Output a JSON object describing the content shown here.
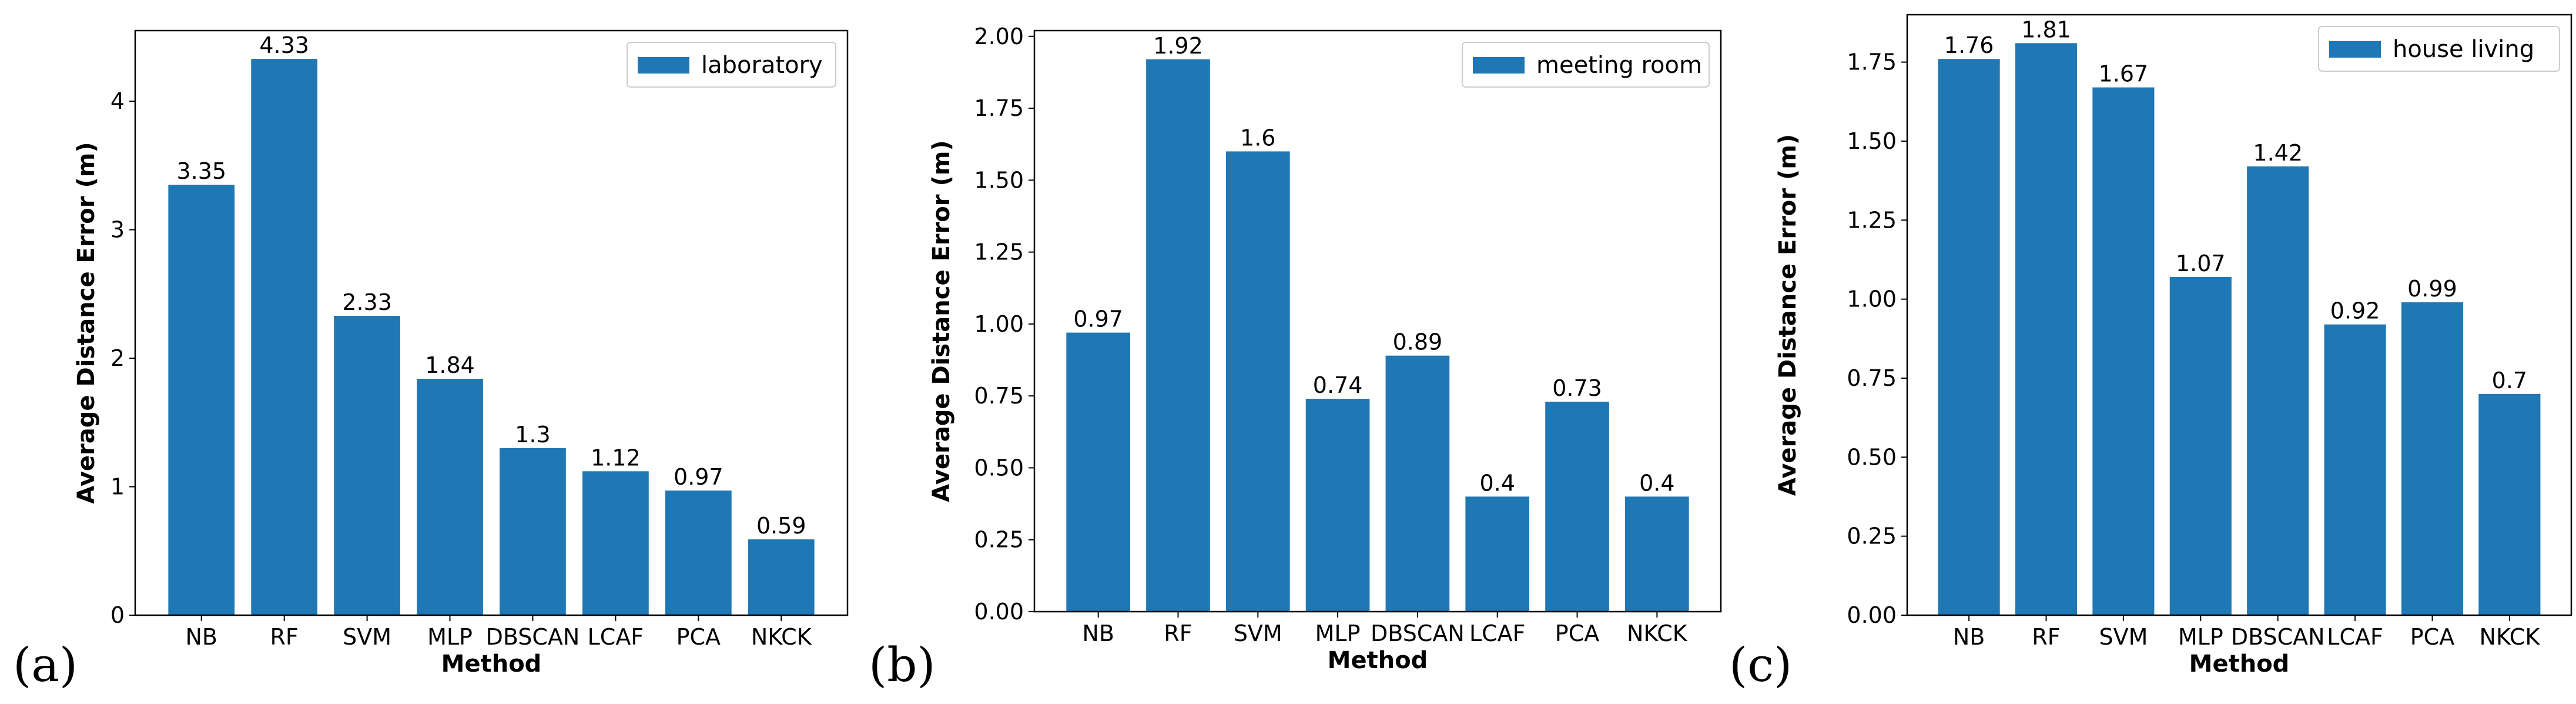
{
  "chart_data": [
    {
      "type": "bar",
      "panel_label": "(a)",
      "categories": [
        "NB",
        "RF",
        "SVM",
        "MLP",
        "DBSCAN",
        "LCAF",
        "PCA",
        "NKCK"
      ],
      "series": [
        {
          "name": "laboratory",
          "values": [
            3.35,
            4.33,
            2.33,
            1.84,
            1.3,
            1.12,
            0.97,
            0.59
          ]
        }
      ],
      "value_labels": [
        "3.35",
        "4.33",
        "2.33",
        "1.84",
        "1.3",
        "1.12",
        "0.97",
        "0.59"
      ],
      "xlabel": "Method",
      "ylabel": "Average Distance Error (m)",
      "ylim": [
        0,
        4.55
      ],
      "yticks": [
        0,
        1,
        2,
        3,
        4
      ],
      "ytick_labels": [
        "0",
        "1",
        "2",
        "3",
        "4"
      ],
      "legend_position": "top-right",
      "grid": false,
      "color": "#1f77b4"
    },
    {
      "type": "bar",
      "panel_label": "(b)",
      "categories": [
        "NB",
        "RF",
        "SVM",
        "MLP",
        "DBSCAN",
        "LCAF",
        "PCA",
        "NKCK"
      ],
      "series": [
        {
          "name": "meeting room",
          "values": [
            0.97,
            1.92,
            1.6,
            0.74,
            0.89,
            0.4,
            0.73,
            0.4
          ]
        }
      ],
      "value_labels": [
        "0.97",
        "1.92",
        "1.6",
        "0.74",
        "0.89",
        "0.4",
        "0.73",
        "0.4"
      ],
      "xlabel": "Method",
      "ylabel": "Average Distance Error (m)",
      "ylim": [
        0,
        2.02
      ],
      "yticks": [
        0,
        0.25,
        0.5,
        0.75,
        1.0,
        1.25,
        1.5,
        1.75,
        2.0
      ],
      "ytick_labels": [
        "0.00",
        "0.25",
        "0.50",
        "0.75",
        "1.00",
        "1.25",
        "1.50",
        "1.75",
        "2.00"
      ],
      "legend_position": "top-right",
      "grid": false,
      "color": "#1f77b4"
    },
    {
      "type": "bar",
      "panel_label": "(c)",
      "categories": [
        "NB",
        "RF",
        "SVM",
        "MLP",
        "DBSCAN",
        "LCAF",
        "PCA",
        "NKCK"
      ],
      "series": [
        {
          "name": "house living",
          "values": [
            1.76,
            1.81,
            1.67,
            1.07,
            1.42,
            0.92,
            0.99,
            0.7
          ]
        }
      ],
      "value_labels": [
        "1.76",
        "1.81",
        "1.67",
        "1.07",
        "1.42",
        "0.92",
        "0.99",
        "0.7"
      ],
      "xlabel": "Method",
      "ylabel": "Average Distance Error (m)",
      "ylim": [
        0,
        1.9
      ],
      "yticks": [
        0,
        0.25,
        0.5,
        0.75,
        1.0,
        1.25,
        1.5,
        1.75
      ],
      "ytick_labels": [
        "0.00",
        "0.25",
        "0.50",
        "0.75",
        "1.00",
        "1.25",
        "1.50",
        "1.75"
      ],
      "legend_position": "top-right",
      "grid": false,
      "color": "#1f77b4"
    }
  ]
}
